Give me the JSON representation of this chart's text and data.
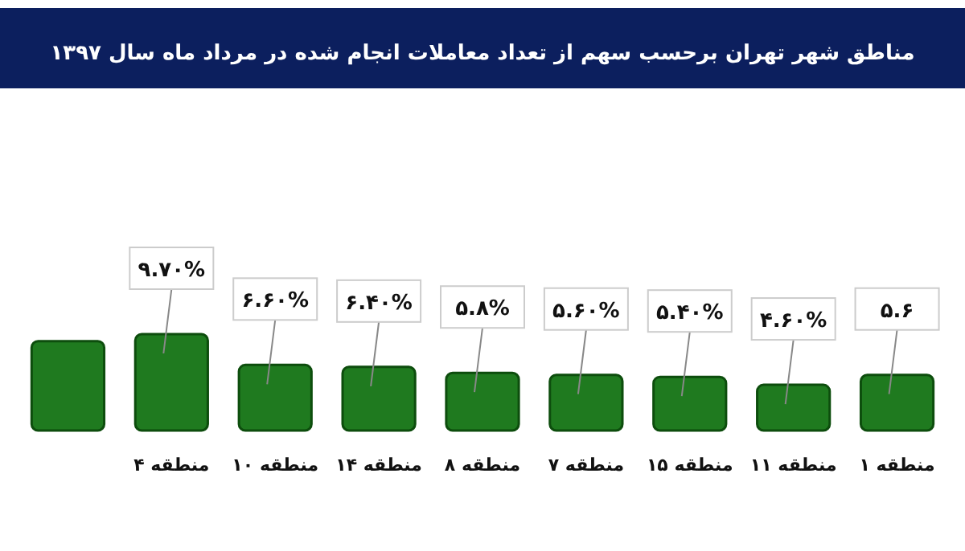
{
  "chart_data": {
    "type": "bar",
    "title": "مناطق شهر تهران برحسب سهم از تعداد معاملات انجام شده در مرداد ماه سال ۱۳۹۷",
    "categories": [
      null,
      "منطقه ۴",
      "منطقه ۱۰",
      "منطقه ۱۴",
      "منطقه ۸",
      "منطقه ۷",
      "منطقه ۱۵",
      "منطقه ۱۱",
      "منطقه ۱"
    ],
    "values": [
      9,
      9.7,
      6.6,
      6.4,
      5.8,
      5.6,
      5.4,
      4.6,
      5.6
    ],
    "value_labels": [
      null,
      "۹.۷۰%",
      "۶.۶۰%",
      "۶.۴۰%",
      "۵.۸%",
      "۵.۶۰%",
      "۵.۴۰%",
      "۴.۶۰%",
      "۵.۶"
    ],
    "color": "#1f7a1f"
  }
}
